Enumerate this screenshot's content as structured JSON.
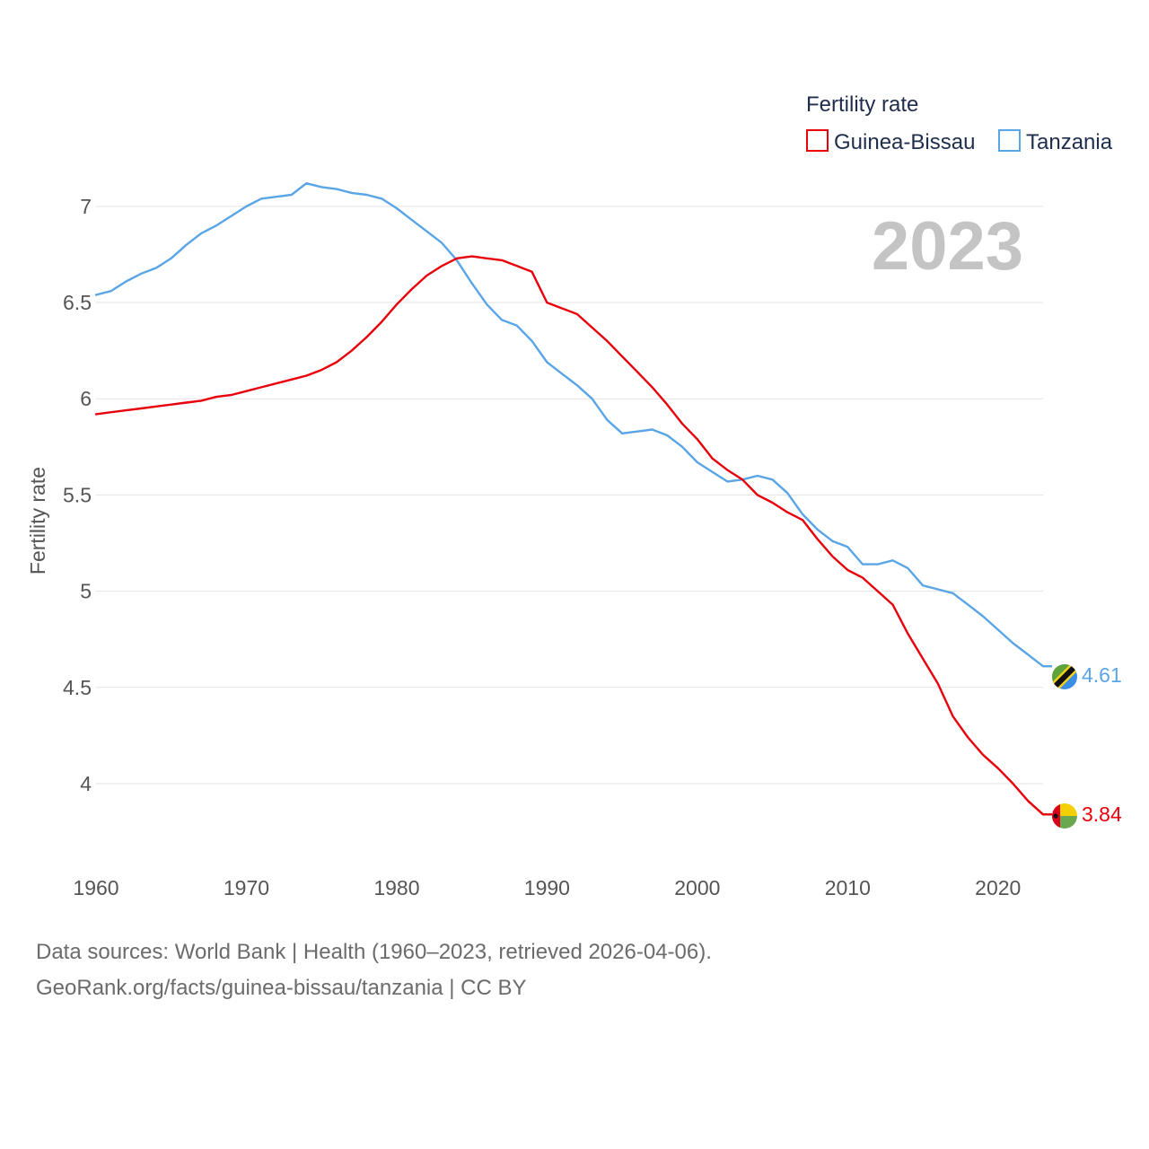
{
  "chart_data": {
    "type": "line",
    "legend_title": "Fertility rate",
    "ylabel": "Fertility rate",
    "xlim": [
      1960,
      2023
    ],
    "ylim": [
      3.65,
      7.27
    ],
    "y_ticks": [
      4,
      4.5,
      5,
      5.5,
      6,
      6.5,
      7
    ],
    "y_tick_labels": [
      "4",
      "4.5",
      "5",
      "5.5",
      "6",
      "6.5",
      "7"
    ],
    "x_ticks": [
      1960,
      1970,
      1980,
      1990,
      2000,
      2010,
      2020
    ],
    "x_tick_labels": [
      "1960",
      "1970",
      "1980",
      "1990",
      "2000",
      "2010",
      "2020"
    ],
    "grid": true,
    "legend_position": "top-right",
    "current_year": "2023",
    "x": [
      1960,
      1961,
      1962,
      1963,
      1964,
      1965,
      1966,
      1967,
      1968,
      1969,
      1970,
      1971,
      1972,
      1973,
      1974,
      1975,
      1976,
      1977,
      1978,
      1979,
      1980,
      1981,
      1982,
      1983,
      1984,
      1985,
      1986,
      1987,
      1988,
      1989,
      1990,
      1991,
      1992,
      1993,
      1994,
      1995,
      1996,
      1997,
      1998,
      1999,
      2000,
      2001,
      2002,
      2003,
      2004,
      2005,
      2006,
      2007,
      2008,
      2009,
      2010,
      2011,
      2012,
      2013,
      2014,
      2015,
      2016,
      2017,
      2018,
      2019,
      2020,
      2021,
      2022,
      2023
    ],
    "series": [
      {
        "name": "Guinea-Bissau",
        "color": "#e8000b",
        "end_label": "3.84",
        "flag": "guinea-bissau-flag-icon",
        "values": [
          5.92,
          5.93,
          5.94,
          5.95,
          5.96,
          5.97,
          5.98,
          5.99,
          6.01,
          6.02,
          6.04,
          6.06,
          6.08,
          6.1,
          6.12,
          6.15,
          6.19,
          6.25,
          6.32,
          6.4,
          6.49,
          6.57,
          6.64,
          6.69,
          6.73,
          6.74,
          6.73,
          6.72,
          6.69,
          6.66,
          6.5,
          6.47,
          6.44,
          6.37,
          6.3,
          6.22,
          6.14,
          6.06,
          5.97,
          5.87,
          5.79,
          5.69,
          5.63,
          5.58,
          5.5,
          5.46,
          5.41,
          5.37,
          5.27,
          5.18,
          5.11,
          5.07,
          5.0,
          4.93,
          4.78,
          4.65,
          4.52,
          4.35,
          4.24,
          4.15,
          4.08,
          4.0,
          3.91,
          3.84
        ]
      },
      {
        "name": "Tanzania",
        "color": "#5aa5e6",
        "end_label": "4.61",
        "flag": "tanzania-flag-icon",
        "values": [
          6.54,
          6.56,
          6.61,
          6.65,
          6.68,
          6.73,
          6.8,
          6.86,
          6.9,
          6.95,
          7.0,
          7.04,
          7.05,
          7.06,
          7.12,
          7.1,
          7.09,
          7.07,
          7.06,
          7.04,
          6.99,
          6.93,
          6.87,
          6.81,
          6.72,
          6.6,
          6.49,
          6.41,
          6.38,
          6.3,
          6.19,
          6.13,
          6.07,
          6.0,
          5.89,
          5.82,
          5.83,
          5.84,
          5.81,
          5.75,
          5.67,
          5.62,
          5.57,
          5.58,
          5.6,
          5.58,
          5.51,
          5.4,
          5.32,
          5.26,
          5.23,
          5.14,
          5.14,
          5.16,
          5.12,
          5.03,
          5.01,
          4.99,
          4.93,
          4.87,
          4.8,
          4.73,
          4.67,
          4.61
        ]
      }
    ]
  },
  "footer": {
    "line1": "Data sources: World Bank | Health (1960–2023, retrieved 2026-04-06).",
    "line2": "GeoRank.org/facts/guinea-bissau/tanzania | CC BY"
  }
}
